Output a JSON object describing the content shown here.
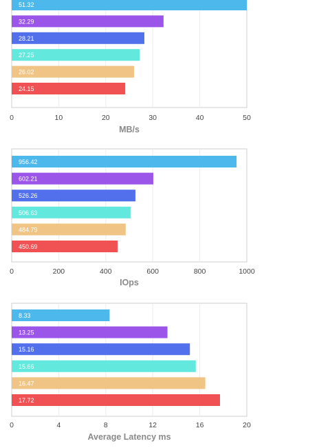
{
  "chart_data": [
    {
      "type": "bar",
      "orientation": "horizontal",
      "xlabel": "MB/s",
      "xlim": [
        0,
        50
      ],
      "xticks": [
        0,
        10,
        20,
        30,
        40,
        50
      ],
      "grid": true,
      "values": [
        51.32,
        32.29,
        28.21,
        27.25,
        26.02,
        24.15
      ],
      "colors": [
        "#4db8ec",
        "#9b55e8",
        "#5270ec",
        "#62e8dc",
        "#f0c484",
        "#f05254"
      ],
      "labels": [
        "51.32",
        "32.29",
        "28.21",
        "27.25",
        "26.02",
        "24.15"
      ]
    },
    {
      "type": "bar",
      "orientation": "horizontal",
      "xlabel": "IOps",
      "xlim": [
        0,
        1000
      ],
      "xticks": [
        0,
        200,
        400,
        600,
        800,
        1000
      ],
      "grid": true,
      "values": [
        956.42,
        602.21,
        526.26,
        506.63,
        484.79,
        450.69
      ],
      "colors": [
        "#4db8ec",
        "#9b55e8",
        "#5270ec",
        "#62e8dc",
        "#f0c484",
        "#f05254"
      ],
      "labels": [
        "956.42",
        "602.21",
        "526.26",
        "506.63",
        "484.79",
        "450.69"
      ]
    },
    {
      "type": "bar",
      "orientation": "horizontal",
      "xlabel": "Average Latency ms",
      "xlim": [
        0,
        20
      ],
      "xticks": [
        0,
        4,
        8,
        12,
        16,
        20
      ],
      "grid": true,
      "values": [
        8.33,
        13.25,
        15.16,
        15.66,
        16.47,
        17.72
      ],
      "colors": [
        "#4db8ec",
        "#9b55e8",
        "#5270ec",
        "#62e8dc",
        "#f0c484",
        "#f05254"
      ],
      "labels": [
        "8.33",
        "13.25",
        "15.16",
        "15.66",
        "16.47",
        "17.72"
      ]
    }
  ]
}
